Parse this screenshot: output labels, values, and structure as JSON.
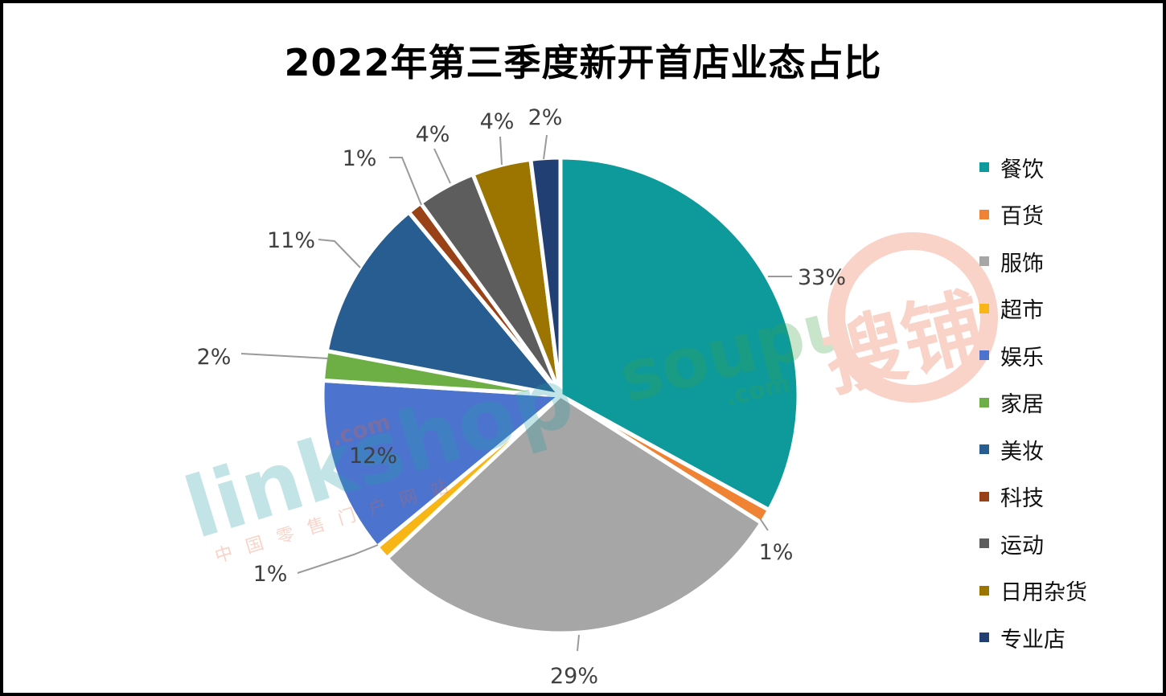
{
  "chart_data": {
    "type": "pie",
    "title": "2022年第三季度新开首店业态占比",
    "slices": [
      {
        "name": "餐饮",
        "value": 33,
        "label": "33%",
        "color": "#0E9A9B"
      },
      {
        "name": "百货",
        "value": 1,
        "label": "1%",
        "color": "#EF8233"
      },
      {
        "name": "服饰",
        "value": 29,
        "label": "29%",
        "color": "#A6A6A6"
      },
      {
        "name": "超市",
        "value": 1,
        "label": "1%",
        "color": "#F7B516"
      },
      {
        "name": "娱乐",
        "value": 12,
        "label": "12%",
        "color": "#4C74CE"
      },
      {
        "name": "家居",
        "value": 2,
        "label": "2%",
        "color": "#6DAE45"
      },
      {
        "name": "美妆",
        "value": 11,
        "label": "11%",
        "color": "#275D90"
      },
      {
        "name": "科技",
        "value": 1,
        "label": "1%",
        "color": "#9A4217"
      },
      {
        "name": "运动",
        "value": 4,
        "label": "4%",
        "color": "#5D5D5D"
      },
      {
        "name": "日用杂货",
        "value": 4,
        "label": "4%",
        "color": "#9C7501"
      },
      {
        "name": "专业店",
        "value": 2,
        "label": "2%",
        "color": "#213F72"
      }
    ],
    "legend_position": "right",
    "start_angle_deg": 0,
    "direction": "clockwise"
  },
  "watermarks": {
    "soupu": "soupu",
    "soupu_com": ".com",
    "soupu_cn": "搜铺",
    "linkshop": "linkshop",
    "linkshop_com": ".com",
    "linkshop_cn": "中国零售门户网站"
  }
}
